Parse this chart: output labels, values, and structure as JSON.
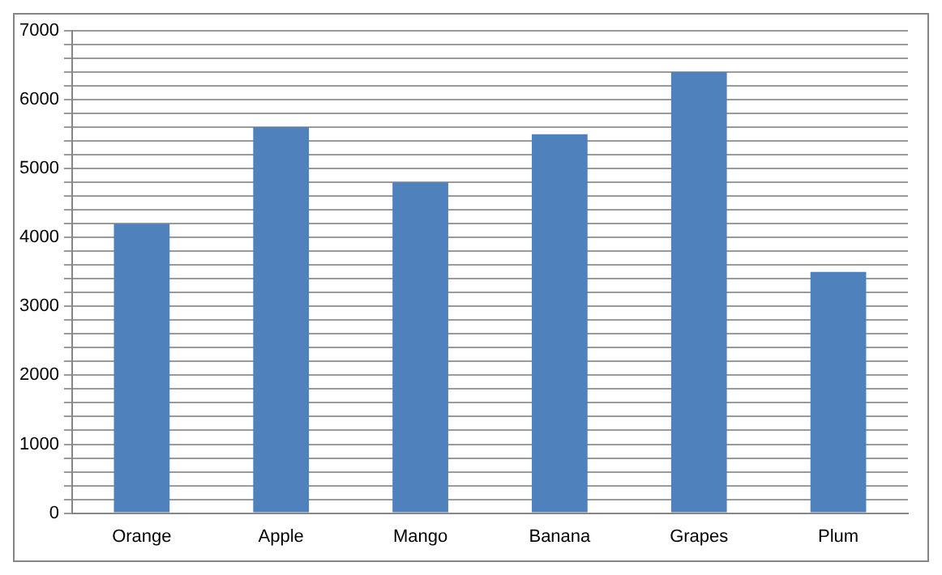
{
  "chart_data": {
    "type": "bar",
    "categories": [
      "Orange",
      "Apple",
      "Mango",
      "Banana",
      "Grapes",
      "Plum"
    ],
    "values": [
      4200,
      5600,
      4800,
      5500,
      6400,
      3500
    ],
    "color": "#4f81bd",
    "ylim": [
      0,
      7000
    ],
    "yticks": [
      0,
      {
        "value": 200,
        "label": null
      },
      {
        "value": 400,
        "label": null
      },
      {
        "value": 600,
        "label": null
      },
      {
        "value": 800,
        "label": null
      },
      1000,
      {
        "value": 1200,
        "label": null
      },
      {
        "value": 1400,
        "label": null
      },
      {
        "value": 1600,
        "label": null
      },
      {
        "value": 1800,
        "label": null
      },
      2000,
      {
        "value": 2200,
        "label": null
      },
      {
        "value": 2400,
        "label": null
      },
      {
        "value": 2600,
        "label": null
      },
      {
        "value": 2800,
        "label": null
      },
      3000,
      {
        "value": 3200,
        "label": null
      },
      {
        "value": 3400,
        "label": null
      },
      {
        "value": 3600,
        "label": null
      },
      {
        "value": 3800,
        "label": null
      },
      4000,
      {
        "value": 4200,
        "label": null
      },
      {
        "value": 4400,
        "label": null
      },
      {
        "value": 4600,
        "label": null
      },
      {
        "value": 4800,
        "label": null
      },
      5000,
      {
        "value": 5200,
        "label": null
      },
      {
        "value": 5400,
        "label": null
      },
      {
        "value": 5600,
        "label": null
      },
      {
        "value": 5800,
        "label": null
      },
      6000,
      {
        "value": 6200,
        "label": null
      },
      {
        "value": 6400,
        "label": null
      },
      {
        "value": 6600,
        "label": null
      },
      {
        "value": 6800,
        "label": null
      },
      7000
    ],
    "grid": "y",
    "legend": false
  }
}
